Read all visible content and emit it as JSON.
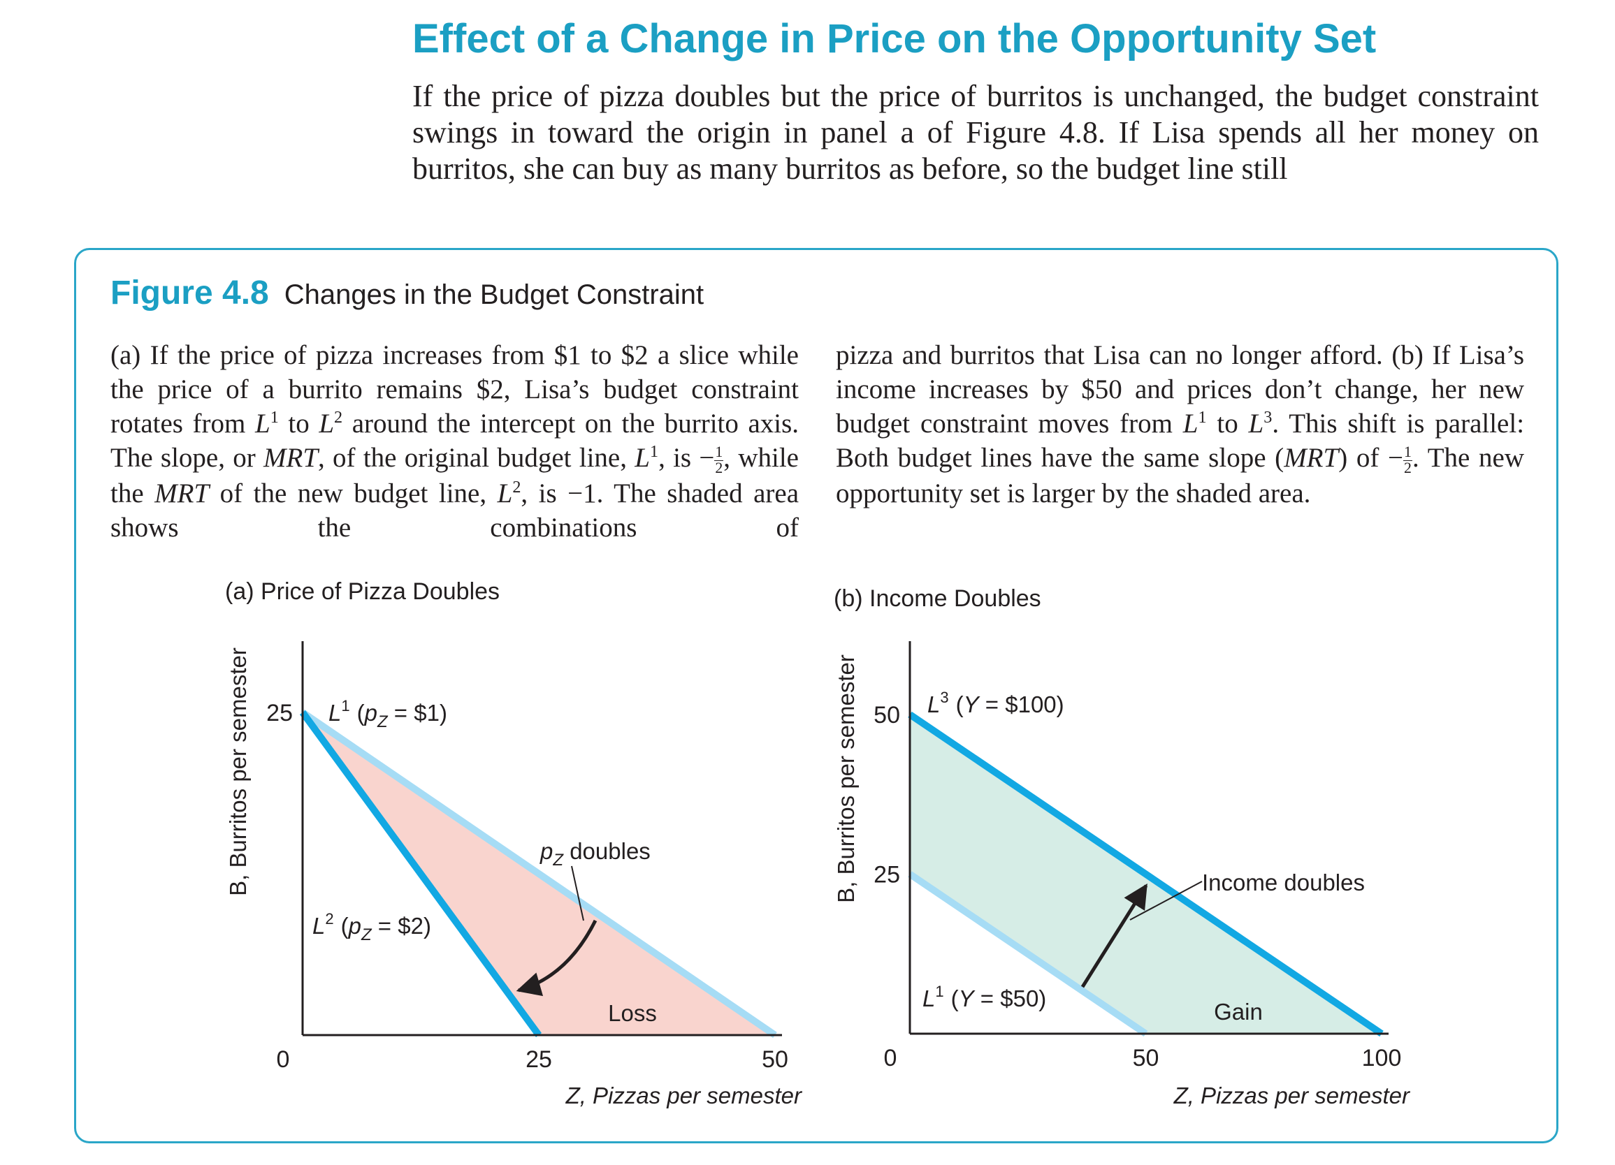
{
  "section": {
    "title": "Effect of a Change in Price on the Opportunity Set",
    "intro": "If the price of pizza doubles but the price of burritos is unchanged, the budget constraint swings in toward the origin in panel a of Figure 4.8. If Lisa spends all her money on burritos, she can buy as many burritos as before, so the budget line still"
  },
  "figure": {
    "number": "Figure 4.8",
    "title": "Changes in the Budget Constraint",
    "caption": {
      "p1": "(a) If the price of pizza increases from $1 to $2 a slice while the price of a burrito remains $2, Lisa’s budget constraint rotates from",
      "p2": "around the intercept on the burrito axis. The slope, or",
      "p3": ", of the original budget line,",
      "p4": ", while the",
      "p5": "of the new budget line,",
      "p6": ", is −1. The shaded area shows the combinations of",
      "p7": "pizza and burritos that Lisa can no longer afford. (b) If Lisa’s income increases by $50 and prices don’t change, her new budget constraint moves from",
      "p8": ". This shift is parallel: Both budget lines have the same slope (",
      "p9": ") of −",
      "p10": ". The new opportunity set is larger by the shaded area.",
      "to": "to",
      "is": ", is −",
      "L": "L",
      "s1": "1",
      "s2": "2",
      "s3": "3",
      "mrt": "MRT",
      "half_n": "1",
      "half_d": "2"
    }
  },
  "chart_data": [
    {
      "type": "line",
      "title": "(a) Price of Pizza Doubles",
      "xlabel": "Z, Pizzas per semester",
      "ylabel": "B, Burritos per semester",
      "xlim": [
        0,
        50
      ],
      "ylim": [
        0,
        25
      ],
      "x_ticks": [
        "0",
        "25",
        "50"
      ],
      "y_ticks": [
        "25"
      ],
      "series": [
        {
          "name": "L¹ (pZ = $1)",
          "x": [
            0,
            50
          ],
          "y": [
            25,
            0
          ],
          "color": "#a6dcf5"
        },
        {
          "name": "L² (pZ = $2)",
          "x": [
            0,
            25
          ],
          "y": [
            25,
            0
          ],
          "color": "#12a8e3"
        }
      ],
      "shaded_region": {
        "label": "Loss",
        "color": "#f9d4ce",
        "x": [
          0,
          25,
          50
        ],
        "y": [
          25,
          0,
          0
        ]
      },
      "labels": {
        "l1": {
          "L": "L",
          "sup": "1",
          "p": "(",
          "pz": "p",
          "pz_sub": "Z",
          "rest": " = $1)"
        },
        "l2": {
          "L": "L",
          "sup": "2",
          "p": "(",
          "pz": "p",
          "pz_sub": "Z",
          "rest": " = $2)"
        }
      },
      "annotations": [
        {
          "pz": "p",
          "pz_sub": "Z",
          "text": " doubles"
        }
      ]
    },
    {
      "type": "line",
      "title": "(b) Income Doubles",
      "xlabel": "Z, Pizzas per semester",
      "ylabel": "B, Burritos per semester",
      "xlim": [
        0,
        100
      ],
      "ylim": [
        0,
        50
      ],
      "x_ticks": [
        "0",
        "50",
        "100"
      ],
      "y_ticks": [
        "25",
        "50"
      ],
      "series": [
        {
          "name": "L¹ (Y = $50)",
          "x": [
            0,
            50
          ],
          "y": [
            25,
            0
          ],
          "color": "#a6dcf5"
        },
        {
          "name": "L³ (Y = $100)",
          "x": [
            0,
            100
          ],
          "y": [
            50,
            0
          ],
          "color": "#12a8e3"
        }
      ],
      "shaded_region": {
        "label": "Gain",
        "color": "#d6ede6",
        "x": [
          0,
          50,
          100,
          0
        ],
        "y": [
          25,
          0,
          0,
          50
        ]
      },
      "labels": {
        "l1": {
          "L": "L",
          "sup": "1",
          "p": "(",
          "y": "Y",
          "rest": " = $50)"
        },
        "l3": {
          "L": "L",
          "sup": "3",
          "p": "(",
          "y": "Y",
          "rest": " = $100)"
        }
      },
      "annotations": [
        {
          "text": "Income doubles"
        }
      ]
    }
  ]
}
